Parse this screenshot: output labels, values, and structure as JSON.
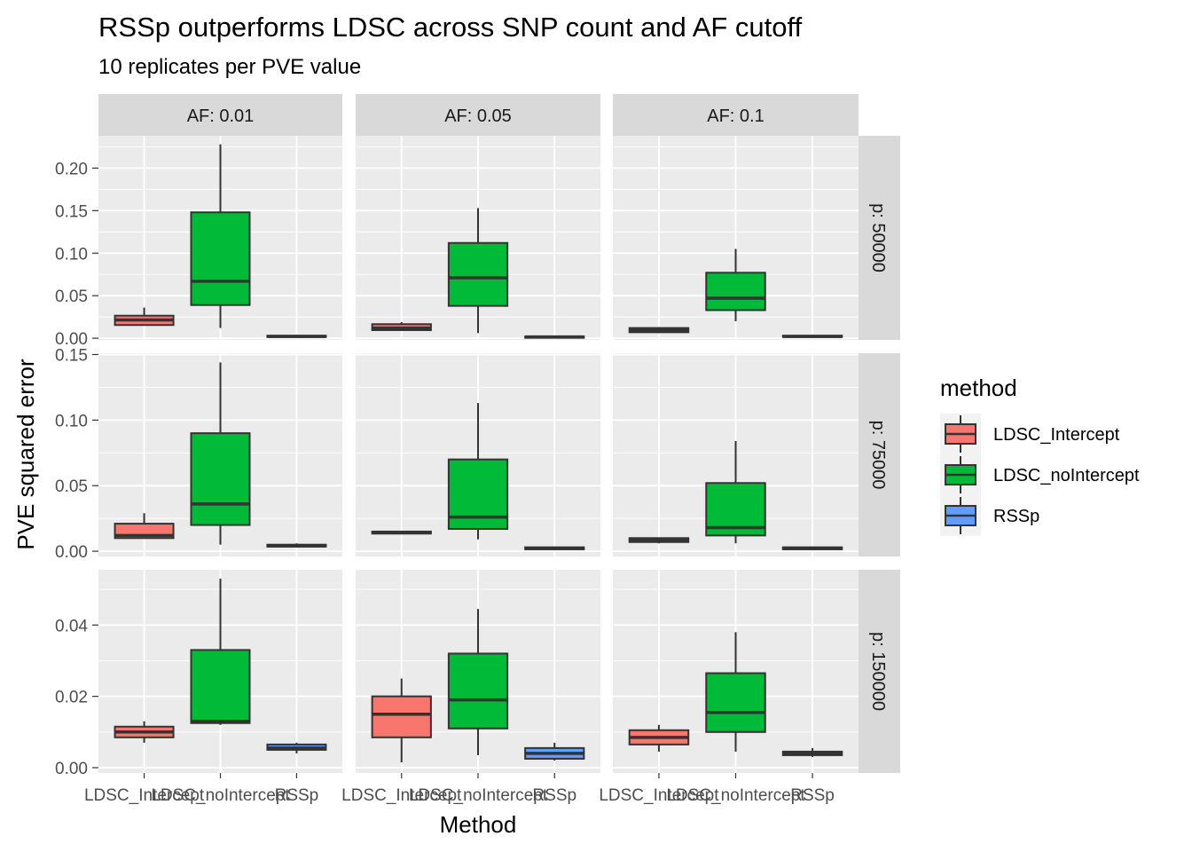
{
  "chart_data": {
    "type": "box",
    "title": "RSSp outperforms LDSC across SNP count and AF cutoff",
    "subtitle": "10 replicates per PVE value",
    "xlabel": "Method",
    "ylabel": "PVE squared error",
    "categories": [
      "LDSC_Intercept",
      "LDSC_noIntercept",
      "RSSp"
    ],
    "facet_cols": [
      "AF: 0.01",
      "AF: 0.05",
      "AF: 0.1"
    ],
    "legend": {
      "title": "method",
      "position": "right",
      "items": [
        {
          "label": "LDSC_Intercept",
          "color": "#F8766D"
        },
        {
          "label": "LDSC_noIntercept",
          "color": "#00BA38"
        },
        {
          "label": "RSSp",
          "color": "#619CFF"
        }
      ]
    },
    "grid": true,
    "rows": [
      {
        "label": "p: 50000",
        "ylim": [
          -0.002,
          0.238
        ],
        "ticks": [
          0.0,
          0.05,
          0.1,
          0.15,
          0.2
        ],
        "tick_labels": [
          "0.00",
          "0.05",
          "0.10",
          "0.15",
          "0.20"
        ],
        "panels": [
          [
            [
              0.015,
              0.0155,
              0.0215,
              0.0265,
              0.036
            ],
            [
              0.012,
              0.039,
              0.067,
              0.148,
              0.228
            ],
            [
              0.001,
              0.0015,
              0.002,
              0.003,
              0.004
            ]
          ],
          [
            [
              0.009,
              0.0095,
              0.012,
              0.0165,
              0.019
            ],
            [
              0.006,
              0.038,
              0.071,
              0.112,
              0.153
            ],
            [
              0.0005,
              0.001,
              0.0015,
              0.002,
              0.003
            ]
          ],
          [
            [
              0.006,
              0.007,
              0.0095,
              0.012,
              0.013
            ],
            [
              0.02,
              0.033,
              0.047,
              0.077,
              0.105
            ],
            [
              0.001,
              0.0015,
              0.002,
              0.003,
              0.004
            ]
          ]
        ]
      },
      {
        "label": "p: 75000",
        "ylim": [
          -0.004,
          0.151
        ],
        "ticks": [
          0.0,
          0.05,
          0.1,
          0.15
        ],
        "tick_labels": [
          "0.00",
          "0.05",
          "0.10",
          "0.15"
        ],
        "panels": [
          [
            [
              0.01,
              0.01,
              0.012,
              0.021,
              0.029
            ],
            [
              0.005,
              0.02,
              0.036,
              0.09,
              0.144
            ],
            [
              0.003,
              0.0035,
              0.004,
              0.005,
              0.006
            ]
          ],
          [
            [
              0.013,
              0.0135,
              0.014,
              0.015,
              0.015
            ],
            [
              0.009,
              0.017,
              0.026,
              0.07,
              0.113
            ],
            [
              0.001,
              0.0015,
              0.002,
              0.003,
              0.003
            ]
          ],
          [
            [
              0.006,
              0.007,
              0.0085,
              0.01,
              0.01
            ],
            [
              0.006,
              0.012,
              0.018,
              0.052,
              0.084
            ],
            [
              0.001,
              0.0015,
              0.002,
              0.003,
              0.003
            ]
          ]
        ]
      },
      {
        "label": "p: 150000",
        "ylim": [
          -0.0015,
          0.0555
        ],
        "ticks": [
          0.0,
          0.02,
          0.04
        ],
        "tick_labels": [
          "0.00",
          "0.02",
          "0.04"
        ],
        "panels": [
          [
            [
              0.007,
              0.0085,
              0.01,
              0.0115,
              0.013
            ],
            [
              0.012,
              0.0125,
              0.013,
              0.033,
              0.053
            ],
            [
              0.004,
              0.005,
              0.0055,
              0.0065,
              0.007
            ]
          ],
          [
            [
              0.0015,
              0.0085,
              0.015,
              0.02,
              0.025
            ],
            [
              0.0035,
              0.011,
              0.019,
              0.032,
              0.0445
            ],
            [
              0.002,
              0.0025,
              0.004,
              0.0055,
              0.007
            ]
          ],
          [
            [
              0.0045,
              0.0065,
              0.0085,
              0.0105,
              0.012
            ],
            [
              0.0045,
              0.01,
              0.0155,
              0.0265,
              0.038
            ],
            [
              0.003,
              0.0035,
              0.004,
              0.0045,
              0.0055
            ]
          ]
        ]
      }
    ]
  }
}
